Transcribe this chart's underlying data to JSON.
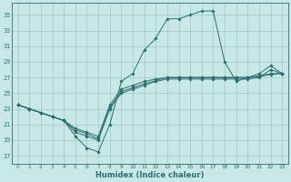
{
  "xlabel": "Humidex (Indice chaleur)",
  "bg_color": "#c8e8e8",
  "grid_color": "#a0c8c8",
  "line_color": "#2e6e6e",
  "xlim": [
    -0.5,
    23.5
  ],
  "ylim": [
    16,
    36.5
  ],
  "yticks": [
    17,
    19,
    21,
    23,
    25,
    27,
    29,
    31,
    33,
    35
  ],
  "xticks": [
    0,
    1,
    2,
    3,
    4,
    5,
    6,
    7,
    8,
    9,
    10,
    11,
    12,
    13,
    14,
    15,
    16,
    17,
    18,
    19,
    20,
    21,
    22,
    23
  ],
  "line1_x": [
    0,
    1,
    2,
    3,
    4,
    5,
    6,
    7,
    8,
    9,
    10,
    11,
    12,
    13,
    14,
    15,
    16,
    17,
    18,
    19,
    20,
    21,
    22,
    23
  ],
  "line1_y": [
    23.5,
    23.0,
    22.5,
    22.0,
    21.5,
    19.5,
    18.0,
    17.5,
    21.0,
    26.5,
    27.5,
    30.5,
    32.0,
    34.5,
    34.5,
    35.0,
    35.5,
    35.5,
    29.0,
    26.5,
    27.0,
    27.5,
    28.5,
    27.5
  ],
  "line2_x": [
    0,
    1,
    2,
    3,
    4,
    5,
    6,
    7,
    8,
    9,
    10,
    11,
    12,
    13,
    14,
    15,
    16,
    17,
    18,
    19,
    20,
    21,
    22,
    23
  ],
  "line2_y": [
    23.5,
    23.0,
    22.5,
    22.0,
    21.5,
    20.5,
    20.0,
    19.5,
    23.5,
    25.5,
    26.0,
    26.5,
    26.8,
    27.0,
    27.0,
    27.0,
    27.0,
    27.0,
    27.0,
    27.0,
    27.0,
    27.2,
    27.5,
    27.5
  ],
  "line3_x": [
    0,
    1,
    2,
    3,
    4,
    5,
    6,
    7,
    8,
    9,
    10,
    11,
    12,
    13,
    14,
    15,
    16,
    17,
    18,
    19,
    20,
    21,
    22,
    23
  ],
  "line3_y": [
    23.5,
    23.0,
    22.5,
    22.0,
    21.5,
    20.3,
    19.8,
    19.2,
    23.2,
    25.2,
    25.7,
    26.2,
    26.6,
    27.0,
    27.0,
    27.0,
    27.0,
    27.0,
    27.0,
    27.0,
    27.0,
    27.1,
    27.4,
    27.5
  ],
  "line4_x": [
    0,
    1,
    2,
    3,
    4,
    5,
    6,
    7,
    8,
    9,
    10,
    11,
    12,
    13,
    14,
    15,
    16,
    17,
    18,
    19,
    20,
    21,
    22,
    23
  ],
  "line4_y": [
    23.5,
    23.0,
    22.5,
    22.0,
    21.5,
    20.0,
    19.5,
    19.0,
    23.0,
    25.0,
    25.5,
    26.0,
    26.5,
    26.8,
    26.8,
    26.8,
    26.8,
    26.8,
    26.8,
    26.8,
    26.8,
    27.0,
    28.0,
    27.5
  ]
}
